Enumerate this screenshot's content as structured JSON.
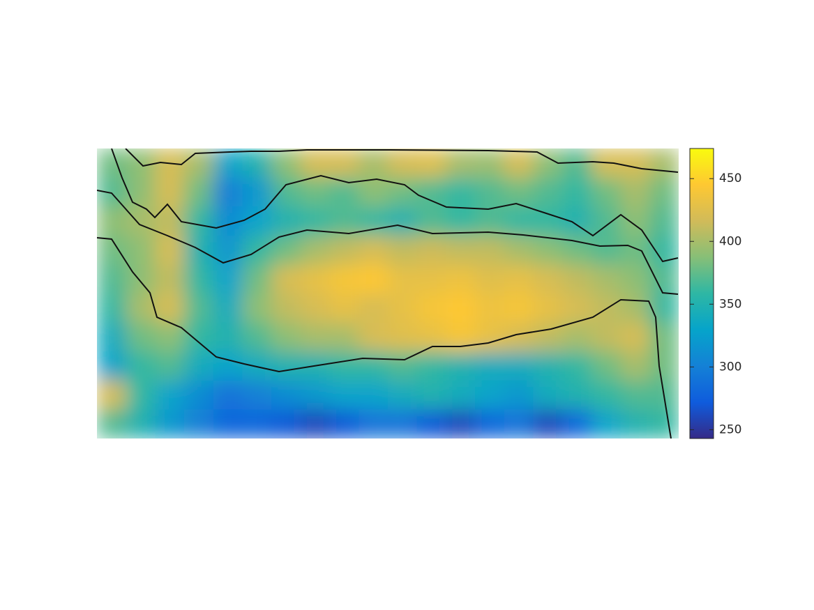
{
  "chart_data": {
    "type": "heatmap",
    "colormap": "parula",
    "z": [
      [
        380,
        390,
        420,
        400,
        330,
        350,
        390,
        420,
        420,
        400,
        420,
        425,
        400,
        395,
        420,
        390,
        370,
        420,
        420,
        400
      ],
      [
        370,
        390,
        420,
        380,
        300,
        320,
        370,
        380,
        370,
        390,
        380,
        370,
        360,
        370,
        380,
        370,
        360,
        380,
        400,
        380
      ],
      [
        390,
        400,
        410,
        360,
        310,
        330,
        350,
        360,
        370,
        360,
        350,
        370,
        360,
        370,
        360,
        360,
        350,
        370,
        390,
        370
      ],
      [
        380,
        390,
        420,
        350,
        320,
        360,
        380,
        400,
        410,
        420,
        410,
        415,
        410,
        410,
        400,
        390,
        380,
        370,
        380,
        360
      ],
      [
        370,
        390,
        410,
        360,
        330,
        380,
        420,
        430,
        440,
        445,
        430,
        430,
        435,
        425,
        430,
        420,
        410,
        400,
        390,
        370
      ],
      [
        360,
        400,
        420,
        370,
        340,
        390,
        410,
        420,
        430,
        420,
        430,
        440,
        445,
        435,
        440,
        430,
        420,
        410,
        400,
        360
      ],
      [
        340,
        380,
        390,
        360,
        350,
        370,
        390,
        400,
        400,
        420,
        425,
        430,
        440,
        430,
        420,
        410,
        400,
        410,
        420,
        380
      ],
      [
        330,
        360,
        370,
        340,
        330,
        340,
        350,
        350,
        360,
        360,
        370,
        360,
        350,
        340,
        340,
        350,
        360,
        380,
        400,
        380
      ],
      [
        420,
        360,
        330,
        310,
        290,
        300,
        310,
        320,
        330,
        330,
        340,
        350,
        340,
        330,
        320,
        340,
        350,
        360,
        370,
        370
      ],
      [
        370,
        350,
        320,
        300,
        280,
        280,
        270,
        260,
        270,
        290,
        290,
        270,
        260,
        280,
        290,
        260,
        280,
        330,
        350,
        360
      ]
    ],
    "clim": [
      243,
      474
    ],
    "cticks": [
      250,
      300,
      350,
      400,
      450
    ]
  }
}
